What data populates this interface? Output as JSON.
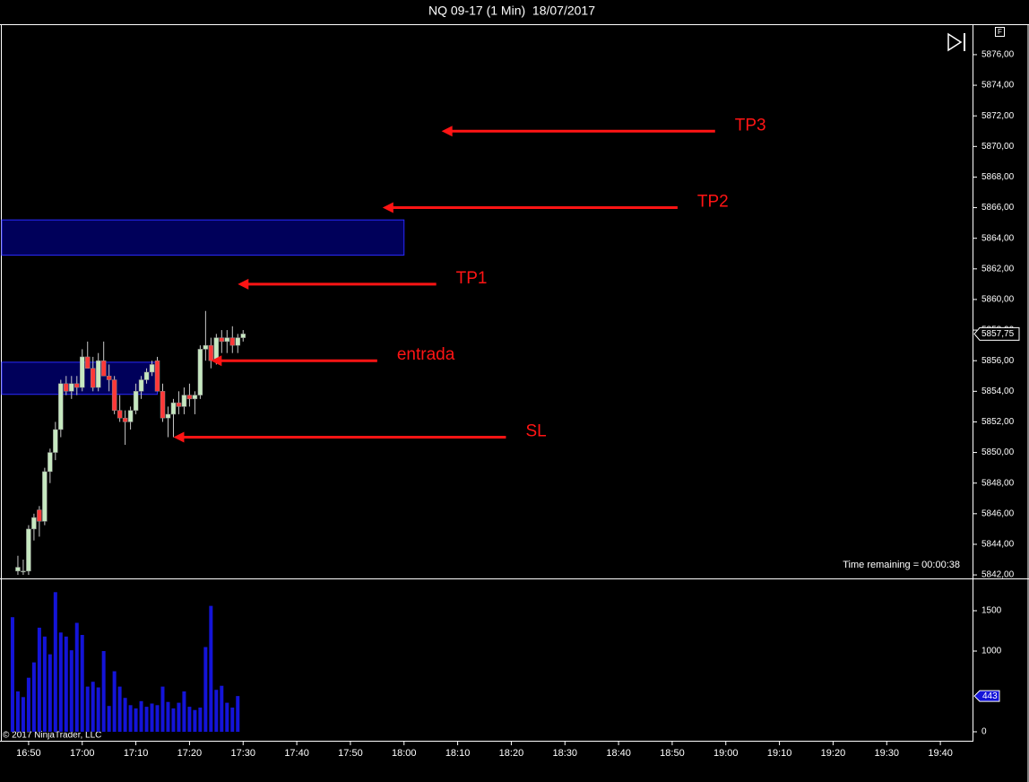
{
  "window_title": "NQ 09-17 (1 Min)  18/07/2017",
  "status_text": "Time remaining = 00:00:38",
  "copyright": "© 2017 NinjaTrader, LLC",
  "panel_flag": "F",
  "chart_data": [
    {
      "type": "candlestick",
      "x": [
        "16:48",
        "16:49",
        "16:50",
        "16:51",
        "16:52",
        "16:53",
        "16:54",
        "16:55",
        "16:56",
        "16:57",
        "16:58",
        "16:59",
        "17:00",
        "17:01",
        "17:02",
        "17:03",
        "17:04",
        "17:05",
        "17:06",
        "17:07",
        "17:08",
        "17:09",
        "17:10",
        "17:11",
        "17:12",
        "17:13",
        "17:14",
        "17:15",
        "17:16",
        "17:17",
        "17:18",
        "17:19",
        "17:20",
        "17:21",
        "17:22",
        "17:23",
        "17:24",
        "17:25",
        "17:26",
        "17:27",
        "17:28",
        "17:29",
        "17:30"
      ],
      "open": [
        5842.25,
        5842.25,
        5842.25,
        5845,
        5846.25,
        5845.5,
        5848.75,
        5850,
        5851.5,
        5854.5,
        5854,
        5854.5,
        5854.25,
        5856.25,
        5855.5,
        5854.25,
        5856,
        5855,
        5854.75,
        5852.75,
        5852.25,
        5852,
        5852.75,
        5854,
        5854.75,
        5855.25,
        5856,
        5854,
        5852.25,
        5852.5,
        5853.25,
        5853,
        5853.75,
        5853.5,
        5853.75,
        5856.75,
        5857,
        5856,
        5857.5,
        5857.25,
        5857.5,
        5857,
        5857.5
      ],
      "high": [
        5843.25,
        5843,
        5845.25,
        5846,
        5846.5,
        5849,
        5850.25,
        5852,
        5854.75,
        5855,
        5855,
        5855,
        5856.75,
        5857.25,
        5856.25,
        5856.5,
        5857.25,
        5855.75,
        5855,
        5853.75,
        5852.75,
        5853,
        5854.5,
        5855,
        5855.5,
        5856,
        5856.25,
        5854.5,
        5853,
        5853.5,
        5854,
        5854.25,
        5854.5,
        5854,
        5857,
        5859.25,
        5857.5,
        5857.75,
        5858,
        5858,
        5858.25,
        5857.75,
        5858
      ],
      "low": [
        5842,
        5842,
        5842,
        5844.25,
        5844.5,
        5845.25,
        5848,
        5849.5,
        5851,
        5853.75,
        5853.5,
        5853.75,
        5854,
        5855.5,
        5854,
        5854,
        5855,
        5854,
        5852.5,
        5852,
        5850.5,
        5851.5,
        5852.5,
        5853.5,
        5854.5,
        5855,
        5854,
        5852,
        5851,
        5851,
        5852.5,
        5852.5,
        5853,
        5852.5,
        5853.5,
        5856,
        5855.5,
        5855.75,
        5856.5,
        5856.5,
        5856.5,
        5856.5,
        5857.25
      ],
      "close": [
        5842.5,
        5842.25,
        5845,
        5845.75,
        5845.5,
        5848.75,
        5850,
        5851.5,
        5854.5,
        5854,
        5854.5,
        5854.25,
        5856.25,
        5855.5,
        5854.25,
        5856,
        5855,
        5854.75,
        5852.75,
        5852.25,
        5852,
        5852.75,
        5854,
        5854.75,
        5855.25,
        5855.75,
        5854,
        5852.25,
        5852.5,
        5853.25,
        5853,
        5853.75,
        5853.5,
        5853.75,
        5856.75,
        5857,
        5856,
        5857.5,
        5857.25,
        5857.5,
        5857,
        5857.5,
        5857.75
      ],
      "up_color": "#c6e8c0",
      "down_color": "#ff3838",
      "wick_color": "#c8c8c8",
      "current_price": {
        "value": 5857.75,
        "label": "5857,75"
      },
      "xlim": [
        "16:45",
        "19:46"
      ],
      "xticks": [
        "16:50",
        "17:00",
        "17:10",
        "17:20",
        "17:30",
        "17:40",
        "17:50",
        "18:00",
        "18:10",
        "18:20",
        "18:30",
        "18:40",
        "18:50",
        "19:00",
        "19:10",
        "19:20",
        "19:30",
        "19:40"
      ],
      "ylim": [
        5841.77,
        5877.93
      ],
      "yticks": [
        {
          "value": 5842,
          "label": "5842,00"
        },
        {
          "value": 5844,
          "label": "5844,00"
        },
        {
          "value": 5846,
          "label": "5846,00"
        },
        {
          "value": 5848,
          "label": "5848,00"
        },
        {
          "value": 5850,
          "label": "5850,00"
        },
        {
          "value": 5852,
          "label": "5852,00"
        },
        {
          "value": 5854,
          "label": "5854,00"
        },
        {
          "value": 5856,
          "label": "5856,00"
        },
        {
          "value": 5858,
          "label": "5858,00"
        },
        {
          "value": 5860,
          "label": "5860,00"
        },
        {
          "value": 5862,
          "label": "5862,00"
        },
        {
          "value": 5864,
          "label": "5864,00"
        },
        {
          "value": 5866,
          "label": "5866,00"
        },
        {
          "value": 5868,
          "label": "5868,00"
        },
        {
          "value": 5870,
          "label": "5870,00"
        },
        {
          "value": 5872,
          "label": "5872,00"
        },
        {
          "value": 5874,
          "label": "5874,00"
        },
        {
          "value": 5876,
          "label": "5876,00"
        }
      ],
      "zones": [
        {
          "from": 5862.9,
          "to": 5865.2,
          "until": "18:00"
        },
        {
          "from": 5853.8,
          "to": 5855.9,
          "until": "17:14"
        }
      ],
      "zone_color": "#00005a",
      "zone_border": "#2a2aff",
      "annotation_color": "#ff1414",
      "annotations": [
        {
          "text": "TP3",
          "y": 5871,
          "x": "18:07",
          "x_end": "18:58"
        },
        {
          "text": "TP2",
          "y": 5866,
          "x": "17:56",
          "x_end": "18:51"
        },
        {
          "text": "TP1",
          "y": 5861,
          "x": "17:29",
          "x_end": "18:06"
        },
        {
          "text": "entrada",
          "y": 5856,
          "x": "17:24",
          "x_end": "17:55"
        },
        {
          "text": "SL",
          "y": 5851,
          "x": "17:17",
          "x_end": "18:19"
        }
      ]
    },
    {
      "type": "bar",
      "values": [
        1420,
        500,
        430,
        670,
        860,
        1290,
        1180,
        960,
        1730,
        1230,
        1180,
        1010,
        1350,
        1200,
        560,
        620,
        550,
        1000,
        320,
        750,
        560,
        420,
        330,
        290,
        380,
        310,
        350,
        330,
        560,
        370,
        290,
        360,
        500,
        310,
        270,
        300,
        1050,
        1560,
        520,
        570,
        360,
        300,
        443
      ],
      "color": "#1414d8",
      "ylim": [
        -111,
        1889
      ],
      "yticks": [
        0,
        1000,
        1500
      ]
    }
  ]
}
